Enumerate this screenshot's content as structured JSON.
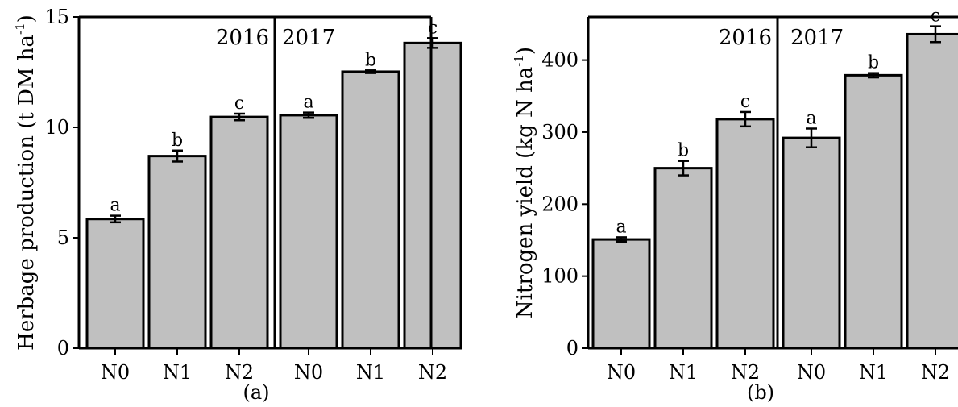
{
  "colors": {
    "bar_fill": "#c0c0c0",
    "stroke": "#000000",
    "background": "#ffffff"
  },
  "chart_data": [
    {
      "type": "bar",
      "panel_label": "(a)",
      "ylabel_main": "Herbage production (t DM ha",
      "ylabel_sup": "-1",
      "ylabel_close": ")",
      "ylim": [
        0,
        15
      ],
      "yticks": [
        0,
        5,
        10,
        15
      ],
      "grid": false,
      "groups": [
        {
          "name": "2016",
          "categories": [
            "N0",
            "N1",
            "N2"
          ],
          "values": [
            5.85,
            8.7,
            10.47
          ],
          "errors": [
            0.15,
            0.25,
            0.15
          ],
          "letters": [
            "a",
            "b",
            "c"
          ]
        },
        {
          "name": "2017",
          "categories": [
            "N0",
            "N1",
            "N2"
          ],
          "values": [
            10.55,
            12.52,
            13.82
          ],
          "errors": [
            0.12,
            0.06,
            0.22
          ],
          "letters": [
            "a",
            "b",
            "c"
          ]
        }
      ]
    },
    {
      "type": "bar",
      "panel_label": "(b)",
      "ylabel_main": "Nitrogen yield (kg N ha",
      "ylabel_sup": "-1",
      "ylabel_close": ")",
      "ylim": [
        0,
        460
      ],
      "yticks": [
        0,
        100,
        200,
        300,
        400
      ],
      "grid": false,
      "groups": [
        {
          "name": "2016",
          "categories": [
            "N0",
            "N1",
            "N2"
          ],
          "values": [
            151,
            250,
            318
          ],
          "errors": [
            3,
            10,
            10
          ],
          "letters": [
            "a",
            "b",
            "c"
          ]
        },
        {
          "name": "2017",
          "categories": [
            "N0",
            "N1",
            "N2"
          ],
          "values": [
            292,
            379,
            436
          ],
          "errors": [
            13,
            3,
            11
          ],
          "letters": [
            "a",
            "b",
            "c"
          ]
        }
      ]
    }
  ]
}
